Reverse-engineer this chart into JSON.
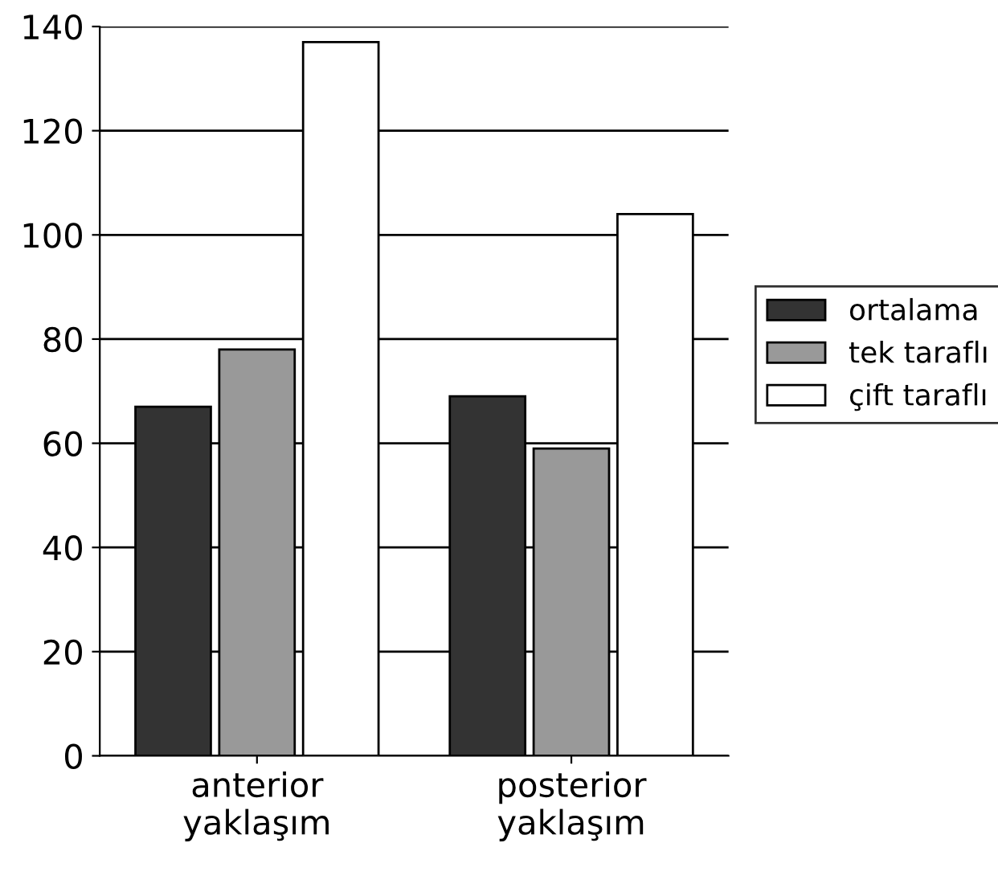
{
  "chart_data": {
    "type": "bar",
    "categories": [
      "anterior\nyaklaşım",
      "posterior\nyaklaşım"
    ],
    "series": [
      {
        "name": "ortalama",
        "color": "#333333",
        "values": [
          67,
          69
        ]
      },
      {
        "name": "tek taraflı",
        "color": "#999999",
        "values": [
          78,
          59
        ]
      },
      {
        "name": "çift taraflı",
        "color": "#ffffff",
        "values": [
          137,
          104
        ]
      }
    ],
    "ylim": [
      0,
      140
    ],
    "yticks": [
      0,
      20,
      40,
      60,
      80,
      100,
      120,
      140
    ],
    "grid": "y",
    "legend": "right"
  }
}
